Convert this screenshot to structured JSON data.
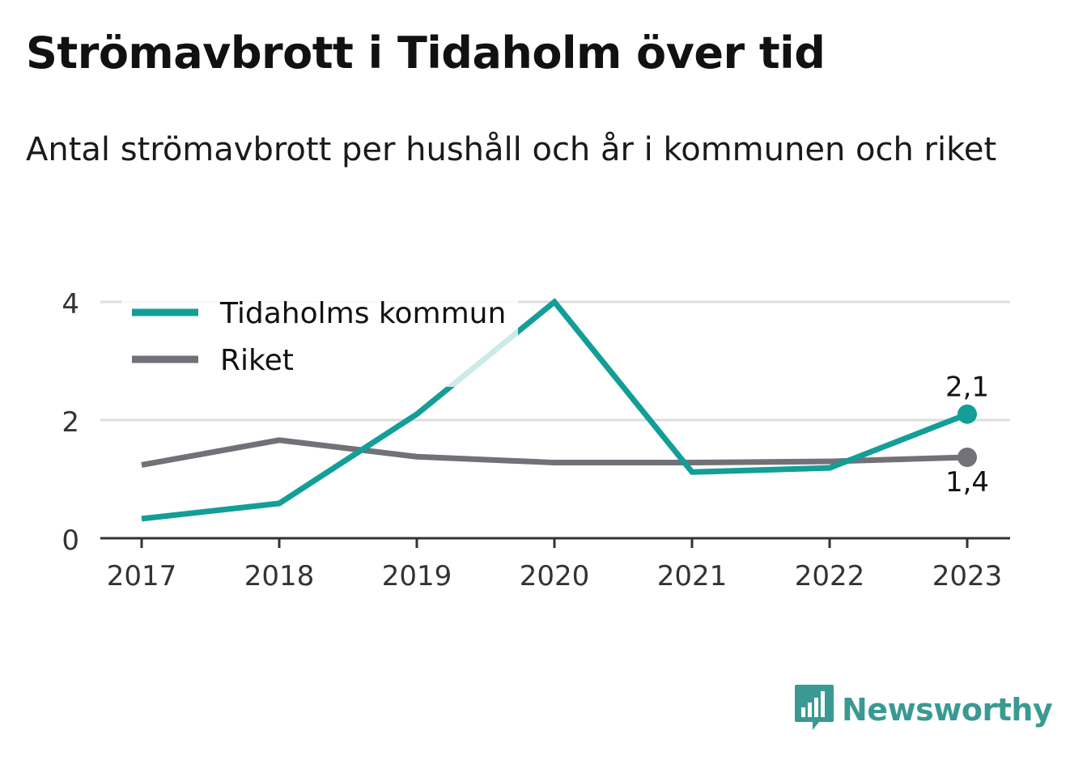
{
  "title": "Strömavbrott i Tidaholm över tid",
  "subtitle": "Antal strömavbrott per hushåll och år i kommunen och riket",
  "brand": "Newsworthy",
  "colors": {
    "kommun": "#139e97",
    "riket": "#727178",
    "grid": "#dddddd",
    "axis": "#333333"
  },
  "chart_data": {
    "type": "line",
    "x": [
      "2017",
      "2018",
      "2019",
      "2020",
      "2021",
      "2022",
      "2023"
    ],
    "y_ticks": [
      "0",
      "2",
      "4"
    ],
    "ylim": [
      0,
      4
    ],
    "grid": true,
    "legend_position": "top-left",
    "series": [
      {
        "name": "Tidaholms kommun",
        "values": [
          0.33,
          0.59,
          2.1,
          4.0,
          1.12,
          1.19,
          2.1
        ],
        "end_label": "2,1"
      },
      {
        "name": "Riket",
        "values": [
          1.24,
          1.66,
          1.38,
          1.28,
          1.28,
          1.3,
          1.37
        ],
        "end_label": "1,4"
      }
    ]
  }
}
